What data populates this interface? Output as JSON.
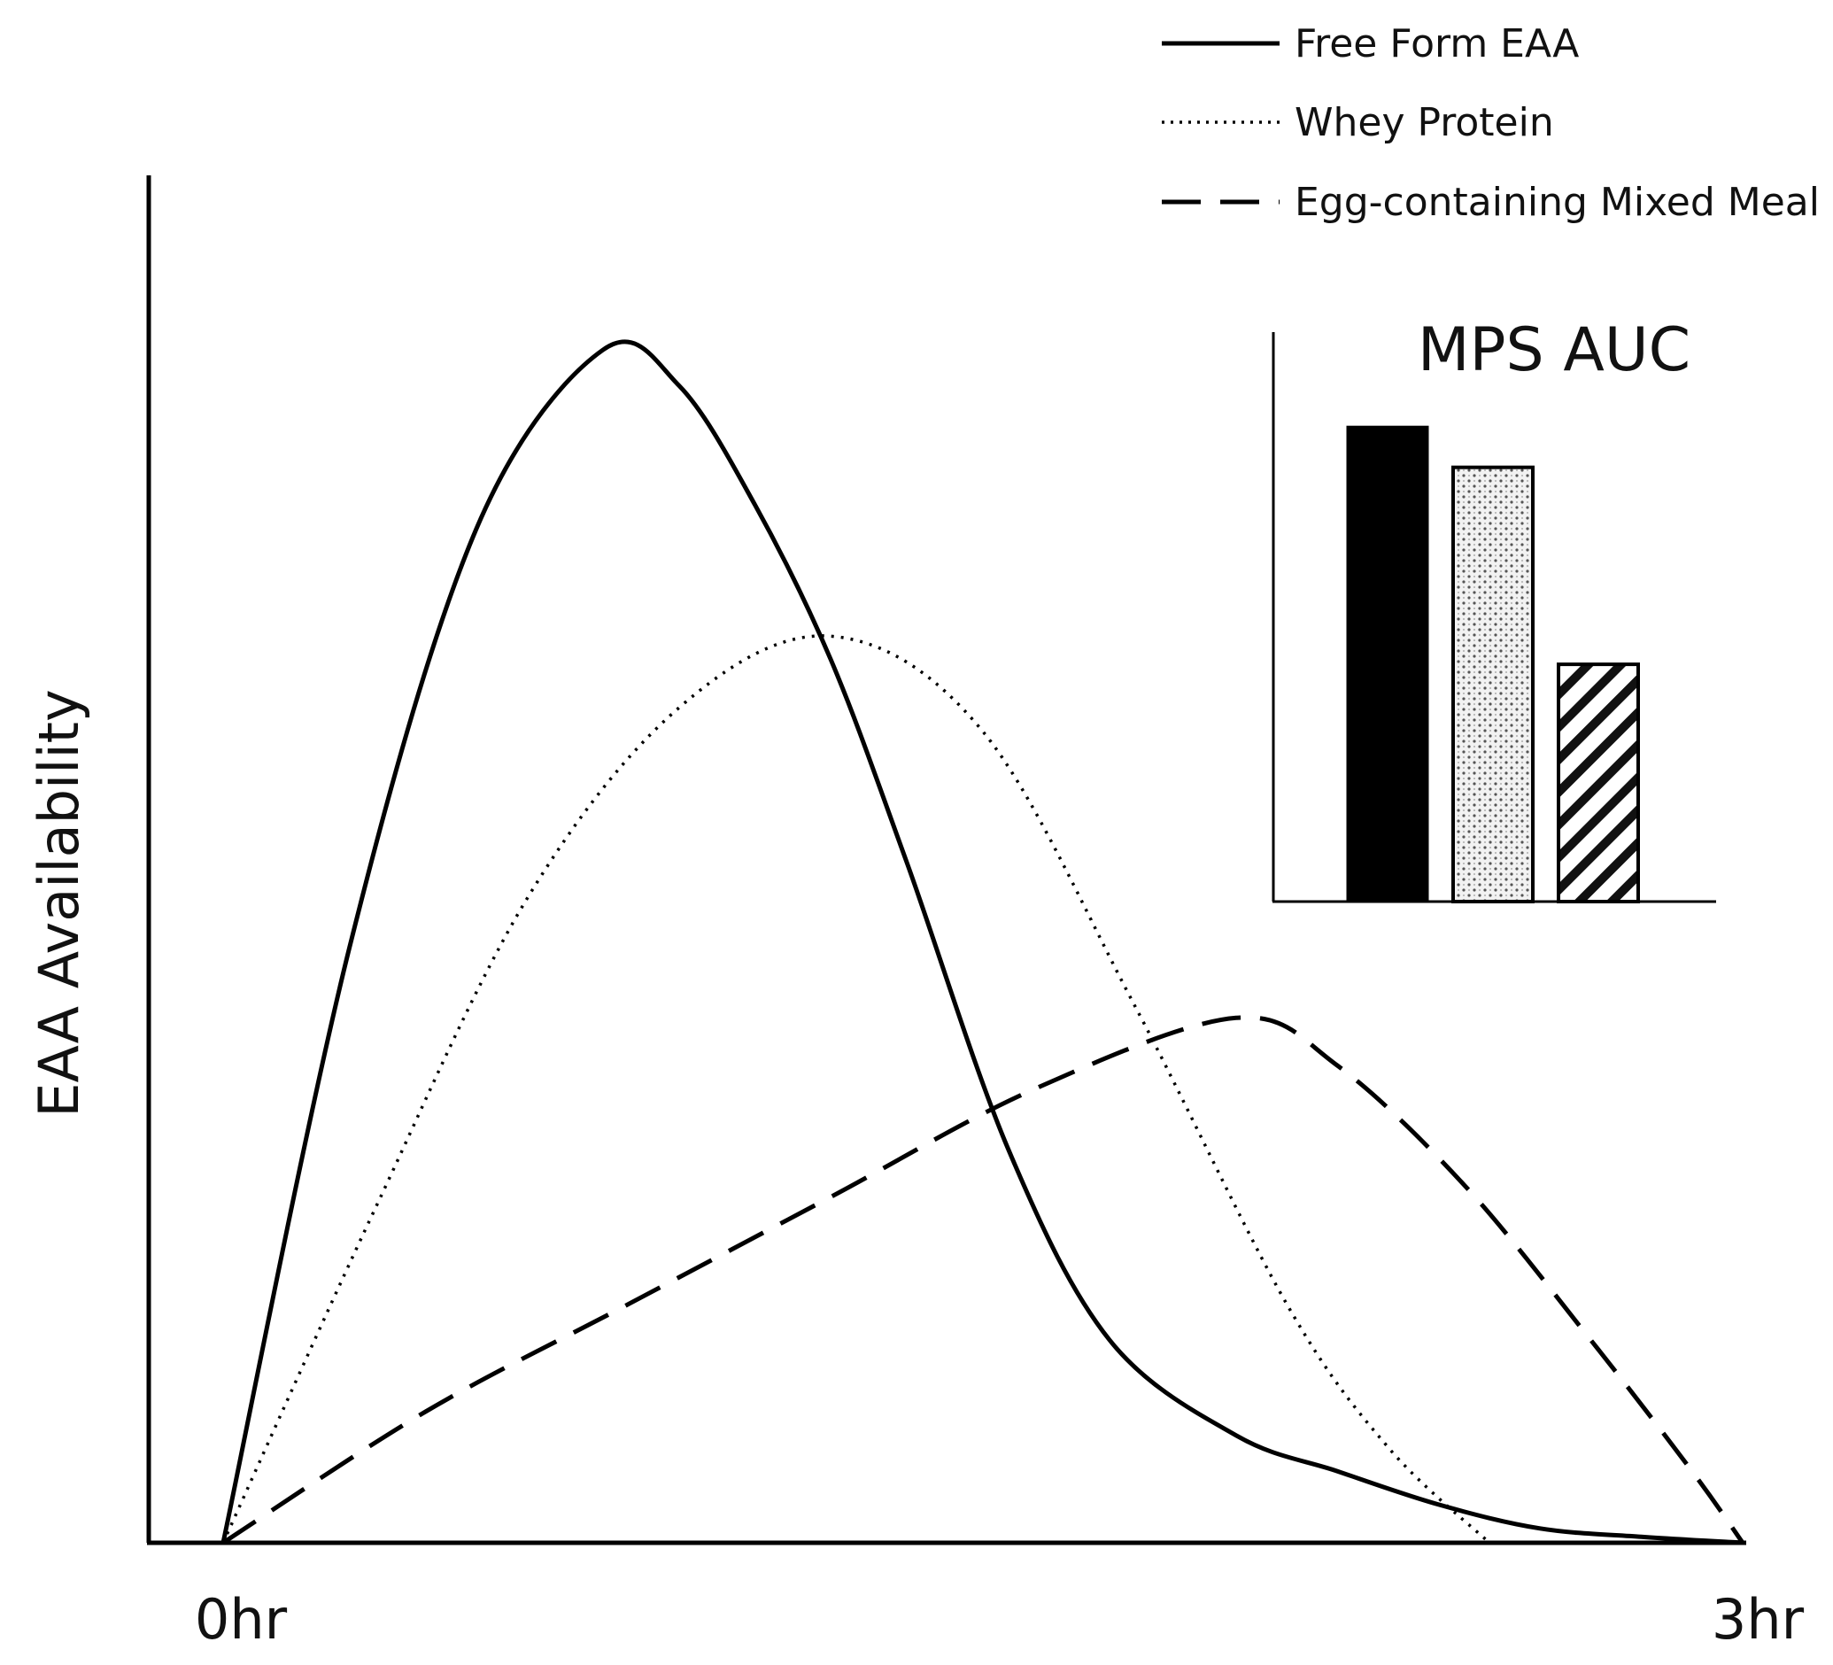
{
  "chart_data": [
    {
      "type": "line",
      "title": "",
      "xlabel": "",
      "ylabel": "EAA Availability",
      "x_tick_labels": [
        "0hr",
        "3hr"
      ],
      "xlim": [
        0,
        3
      ],
      "ylim": [
        0,
        1
      ],
      "grid": false,
      "legend_position": "top-right",
      "series": [
        {
          "name": "Free Form EAA",
          "style": "solid",
          "x": [
            0,
            0.25,
            0.5,
            0.75,
            0.9,
            1.05,
            1.2,
            1.35,
            1.55,
            1.75,
            2.0,
            2.2,
            2.4,
            2.6,
            2.8,
            3.0
          ],
          "y": [
            0,
            0.5,
            0.85,
            1.0,
            0.97,
            0.87,
            0.74,
            0.57,
            0.33,
            0.17,
            0.09,
            0.06,
            0.032,
            0.012,
            0.005,
            0
          ]
        },
        {
          "name": "Whey Protein",
          "style": "dotted",
          "x": [
            0,
            0.3,
            0.6,
            0.9,
            1.2,
            1.5,
            1.8,
            2.1,
            2.3,
            2.5
          ],
          "y": [
            0,
            0.28,
            0.54,
            0.7,
            0.76,
            0.68,
            0.45,
            0.2,
            0.08,
            0
          ]
        },
        {
          "name": "Egg-containing Mixed Meal",
          "style": "dashed",
          "x": [
            0,
            0.4,
            0.8,
            1.2,
            1.6,
            2.0,
            2.2,
            2.45,
            2.7,
            2.9,
            3.0
          ],
          "y": [
            0,
            0.11,
            0.2,
            0.29,
            0.38,
            0.44,
            0.4,
            0.3,
            0.17,
            0.06,
            0
          ]
        }
      ]
    },
    {
      "type": "bar",
      "title": "MPS AUC",
      "categories": [
        "Free Form EAA",
        "Whey Protein",
        "Egg-containing Mixed Meal"
      ],
      "values": [
        1.0,
        0.915,
        0.5
      ],
      "ylim": [
        0,
        1.2
      ],
      "patterns": [
        "solid",
        "stipple",
        "hatch"
      ]
    }
  ],
  "colors": {
    "ink": "#000000",
    "background": "#ffffff"
  }
}
